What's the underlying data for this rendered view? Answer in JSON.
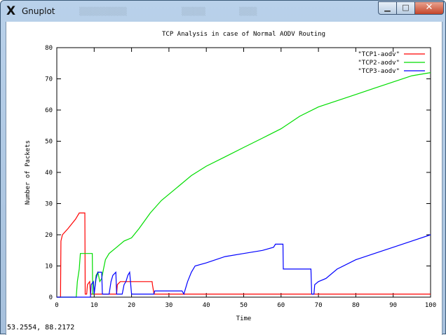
{
  "window": {
    "title": "Gnuplot",
    "app_icon": "x-window-icon",
    "controls": [
      "minimize",
      "maximize",
      "close"
    ]
  },
  "status_bar": {
    "coordinates": "53.2554,  88.2172"
  },
  "colors": {
    "tcp1": "#ff0000",
    "tcp2": "#00dd00",
    "tcp3": "#0000ff"
  },
  "chart_data": {
    "type": "line",
    "title": "TCP Analysis in case of Normal AODV Routing",
    "xlabel": "Time",
    "ylabel": "Number of Packets",
    "xlim": [
      0,
      100
    ],
    "ylim": [
      0,
      80
    ],
    "xticks": [
      0,
      10,
      20,
      30,
      40,
      50,
      60,
      70,
      80,
      90,
      100
    ],
    "yticks": [
      0,
      10,
      20,
      30,
      40,
      50,
      60,
      70,
      80
    ],
    "grid": false,
    "legend_position": "top-right",
    "series": [
      {
        "name": "\"TCP1-aodv\"",
        "color": "#ff0000",
        "points": [
          [
            0,
            0
          ],
          [
            1,
            0
          ],
          [
            1.1,
            18
          ],
          [
            1.5,
            20
          ],
          [
            3,
            22
          ],
          [
            5,
            25
          ],
          [
            6,
            27
          ],
          [
            7.5,
            27
          ],
          [
            7.6,
            1
          ],
          [
            8,
            1
          ],
          [
            8.2,
            4
          ],
          [
            8.8,
            5
          ],
          [
            9,
            1
          ],
          [
            16,
            1
          ],
          [
            16.2,
            4
          ],
          [
            17,
            5
          ],
          [
            25.5,
            5
          ],
          [
            25.6,
            4
          ],
          [
            26,
            1
          ],
          [
            100,
            1
          ]
        ]
      },
      {
        "name": "\"TCP2-aodv\"",
        "color": "#00dd00",
        "points": [
          [
            0,
            0
          ],
          [
            5.2,
            0
          ],
          [
            5.5,
            5
          ],
          [
            6,
            9
          ],
          [
            6.3,
            14
          ],
          [
            9.5,
            14
          ],
          [
            9.6,
            1
          ],
          [
            10,
            1
          ],
          [
            10.5,
            7
          ],
          [
            11,
            8
          ],
          [
            11.5,
            5
          ],
          [
            12,
            6
          ],
          [
            12.5,
            9
          ],
          [
            13,
            12
          ],
          [
            14,
            14
          ],
          [
            16,
            16
          ],
          [
            18,
            18
          ],
          [
            20,
            19
          ],
          [
            22,
            22
          ],
          [
            25,
            27
          ],
          [
            28,
            31
          ],
          [
            32,
            35
          ],
          [
            36,
            39
          ],
          [
            40,
            42
          ],
          [
            45,
            45
          ],
          [
            50,
            48
          ],
          [
            55,
            51
          ],
          [
            60,
            54
          ],
          [
            65,
            58
          ],
          [
            70,
            61
          ],
          [
            75,
            63
          ],
          [
            80,
            65
          ],
          [
            85,
            67
          ],
          [
            90,
            69
          ],
          [
            95,
            71
          ],
          [
            100,
            72
          ]
        ]
      },
      {
        "name": "\"TCP3-aodv\"",
        "color": "#0000ff",
        "points": [
          [
            0,
            0
          ],
          [
            9,
            0
          ],
          [
            9.2,
            4
          ],
          [
            9.8,
            5
          ],
          [
            10,
            1
          ],
          [
            10.5,
            6
          ],
          [
            11,
            8
          ],
          [
            12,
            8
          ],
          [
            12.2,
            1
          ],
          [
            14,
            1
          ],
          [
            14.5,
            5
          ],
          [
            15,
            7
          ],
          [
            15.8,
            8
          ],
          [
            16,
            1
          ],
          [
            17.5,
            1
          ],
          [
            18,
            4
          ],
          [
            18.5,
            5
          ],
          [
            19,
            7
          ],
          [
            19.5,
            8
          ],
          [
            20,
            1
          ],
          [
            26,
            1
          ],
          [
            26.2,
            2
          ],
          [
            33.5,
            2
          ],
          [
            34,
            1
          ],
          [
            35,
            5
          ],
          [
            36,
            8
          ],
          [
            37,
            10
          ],
          [
            40,
            11
          ],
          [
            45,
            13
          ],
          [
            50,
            14
          ],
          [
            55,
            15
          ],
          [
            58,
            16
          ],
          [
            58.5,
            17
          ],
          [
            60.5,
            17
          ],
          [
            60.6,
            9
          ],
          [
            68,
            9
          ],
          [
            68.2,
            1
          ],
          [
            68.8,
            1
          ],
          [
            69,
            4
          ],
          [
            70,
            5
          ],
          [
            72,
            6
          ],
          [
            75,
            9
          ],
          [
            80,
            12
          ],
          [
            85,
            14
          ],
          [
            90,
            16
          ],
          [
            95,
            18
          ],
          [
            100,
            20
          ]
        ]
      }
    ]
  }
}
